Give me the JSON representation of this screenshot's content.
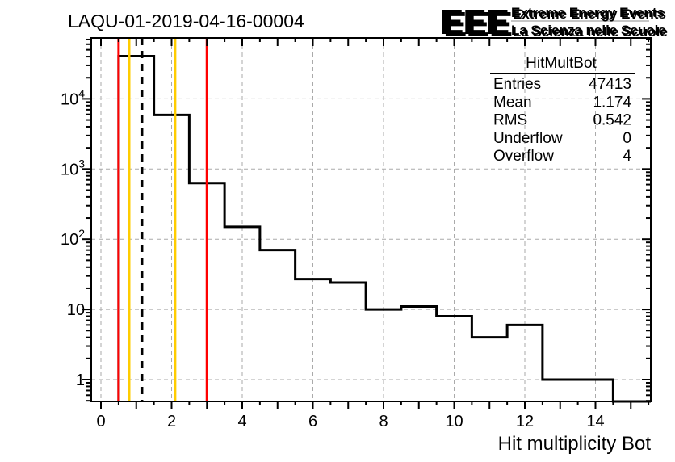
{
  "header": {
    "title": "LAQU-01-2019-04-16-00004"
  },
  "logo": {
    "acronym": "EEE",
    "line1": "Extreme Energy Events",
    "line2": "La Scienza nelle Scuole",
    "blue": "#2b2bee",
    "shadow_gray": "#c6c6c6"
  },
  "stats_box": {
    "title": "HitMultBot",
    "rows": [
      {
        "label": "Entries",
        "value": "47413"
      },
      {
        "label": "Mean",
        "value": "1.174"
      },
      {
        "label": "RMS",
        "value": "0.542"
      },
      {
        "label": "Underflow",
        "value": "0"
      },
      {
        "label": "Overflow",
        "value": "4"
      }
    ]
  },
  "chart_data": {
    "type": "bar",
    "style": "step-outline-histogram",
    "title": "LAQU-01-2019-04-16-00004",
    "xlabel": "Hit multiplicity Bot",
    "ylabel": "",
    "yscale": "log",
    "xlim": [
      -0.3,
      15.55
    ],
    "ylim": [
      0.5,
      73000
    ],
    "grid": true,
    "legend_position": "none",
    "bin_width": 1,
    "bin_centers": [
      1,
      2,
      3,
      4,
      5,
      6,
      7,
      8,
      9,
      10,
      11,
      12,
      13,
      14,
      15
    ],
    "values": [
      40567,
      5900,
      630,
      150,
      70,
      27,
      24,
      10,
      11,
      8,
      4,
      6,
      1,
      1,
      0
    ],
    "xtick_values": [
      0,
      2,
      4,
      6,
      8,
      10,
      12,
      14
    ],
    "xtick_labels": [
      "0",
      "2",
      "4",
      "6",
      "8",
      "10",
      "12",
      "14"
    ],
    "ytick_values": [
      1,
      10,
      100,
      1000,
      10000
    ],
    "ytick_labels": [
      "1",
      "10",
      "10^2",
      "10^3",
      "10^4"
    ],
    "marker_lines": [
      {
        "x": 0.5,
        "color": "#ff0000",
        "style": "solid"
      },
      {
        "x": 0.8,
        "color": "#ffcc00",
        "style": "solid"
      },
      {
        "x": 1.17,
        "color": "#000000",
        "style": "dashed"
      },
      {
        "x": 2.1,
        "color": "#ffcc00",
        "style": "solid"
      },
      {
        "x": 3.0,
        "color": "#ff0000",
        "style": "solid"
      }
    ],
    "colors": {
      "histogram": "#000000",
      "grid": "#aaaaaa",
      "frame": "#000000"
    }
  }
}
